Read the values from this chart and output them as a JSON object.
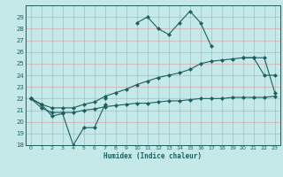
{
  "xlabel": "Humidex (Indice chaleur)",
  "x": [
    0,
    1,
    2,
    3,
    4,
    5,
    6,
    7,
    8,
    9,
    10,
    11,
    12,
    13,
    14,
    15,
    16,
    17,
    18,
    19,
    20,
    21,
    22,
    23
  ],
  "line1": [
    22.0,
    21.5,
    20.5,
    20.7,
    18.0,
    19.5,
    19.5,
    21.5,
    null,
    null,
    null,
    null,
    null,
    null,
    null,
    null,
    null,
    null,
    null,
    null,
    null,
    null,
    null,
    null
  ],
  "line2": [
    22.0,
    21.5,
    null,
    null,
    null,
    null,
    null,
    22.0,
    null,
    null,
    28.5,
    29.0,
    28.0,
    27.5,
    28.5,
    29.5,
    28.5,
    26.5,
    null,
    null,
    25.5,
    25.5,
    24.0,
    24.0
  ],
  "line3": [
    22.0,
    21.5,
    21.2,
    21.2,
    21.2,
    21.5,
    21.7,
    22.2,
    22.5,
    22.8,
    23.2,
    23.5,
    23.8,
    24.0,
    24.2,
    24.5,
    25.0,
    25.2,
    25.3,
    25.4,
    25.5,
    25.5,
    25.5,
    22.5
  ],
  "line4": [
    22.0,
    21.2,
    20.8,
    20.8,
    20.8,
    21.0,
    21.1,
    21.3,
    21.4,
    21.5,
    21.6,
    21.6,
    21.7,
    21.8,
    21.8,
    21.9,
    22.0,
    22.0,
    22.0,
    22.1,
    22.1,
    22.1,
    22.1,
    22.2
  ],
  "ylim": [
    18,
    30
  ],
  "xlim": [
    -0.5,
    23.5
  ],
  "yticks": [
    18,
    19,
    20,
    21,
    22,
    23,
    24,
    25,
    26,
    27,
    28,
    29
  ],
  "xticks": [
    0,
    1,
    2,
    3,
    4,
    5,
    6,
    7,
    8,
    9,
    10,
    11,
    12,
    13,
    14,
    15,
    16,
    17,
    18,
    19,
    20,
    21,
    22,
    23
  ],
  "bg_color": "#c5e8e8",
  "grid_color": "#d4aaaa",
  "line_color": "#1a6060",
  "markersize": 2.5
}
